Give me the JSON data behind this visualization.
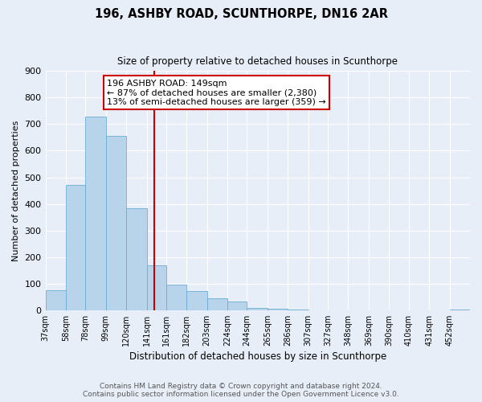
{
  "title1": "196, ASHBY ROAD, SCUNTHORPE, DN16 2AR",
  "title2": "Size of property relative to detached houses in Scunthorpe",
  "xlabel": "Distribution of detached houses by size in Scunthorpe",
  "ylabel": "Number of detached properties",
  "all_bar_values": [
    75,
    470,
    730,
    655,
    385,
    170,
    95,
    72,
    45,
    32,
    10,
    5,
    2,
    0,
    0,
    0,
    0,
    0,
    0,
    0,
    3
  ],
  "bar_labels": [
    "37sqm",
    "58sqm",
    "78sqm",
    "99sqm",
    "120sqm",
    "141sqm",
    "161sqm",
    "182sqm",
    "203sqm",
    "224sqm",
    "244sqm",
    "265sqm",
    "286sqm",
    "307sqm",
    "327sqm",
    "348sqm",
    "369sqm",
    "390sqm",
    "410sqm",
    "431sqm",
    "452sqm"
  ],
  "all_edges": [
    37,
    58,
    78,
    99,
    120,
    141,
    161,
    182,
    203,
    224,
    244,
    265,
    286,
    307,
    327,
    348,
    369,
    390,
    410,
    431,
    452,
    473
  ],
  "bar_color": "#b8d4eb",
  "bar_edgecolor": "#6baed6",
  "vline_x": 149,
  "vline_color": "#cc0000",
  "ylim_max": 900,
  "yticks": [
    0,
    100,
    200,
    300,
    400,
    500,
    600,
    700,
    800,
    900
  ],
  "annotation_title": "196 ASHBY ROAD: 149sqm",
  "annotation_line1": "← 87% of detached houses are smaller (2,380)",
  "annotation_line2": "13% of semi-detached houses are larger (359) →",
  "annotation_box_facecolor": "#ffffff",
  "annotation_box_edgecolor": "#cc0000",
  "footer1": "Contains HM Land Registry data © Crown copyright and database right 2024.",
  "footer2": "Contains public sector information licensed under the Open Government Licence v3.0.",
  "background_color": "#e8eef8",
  "grid_color": "#ffffff"
}
